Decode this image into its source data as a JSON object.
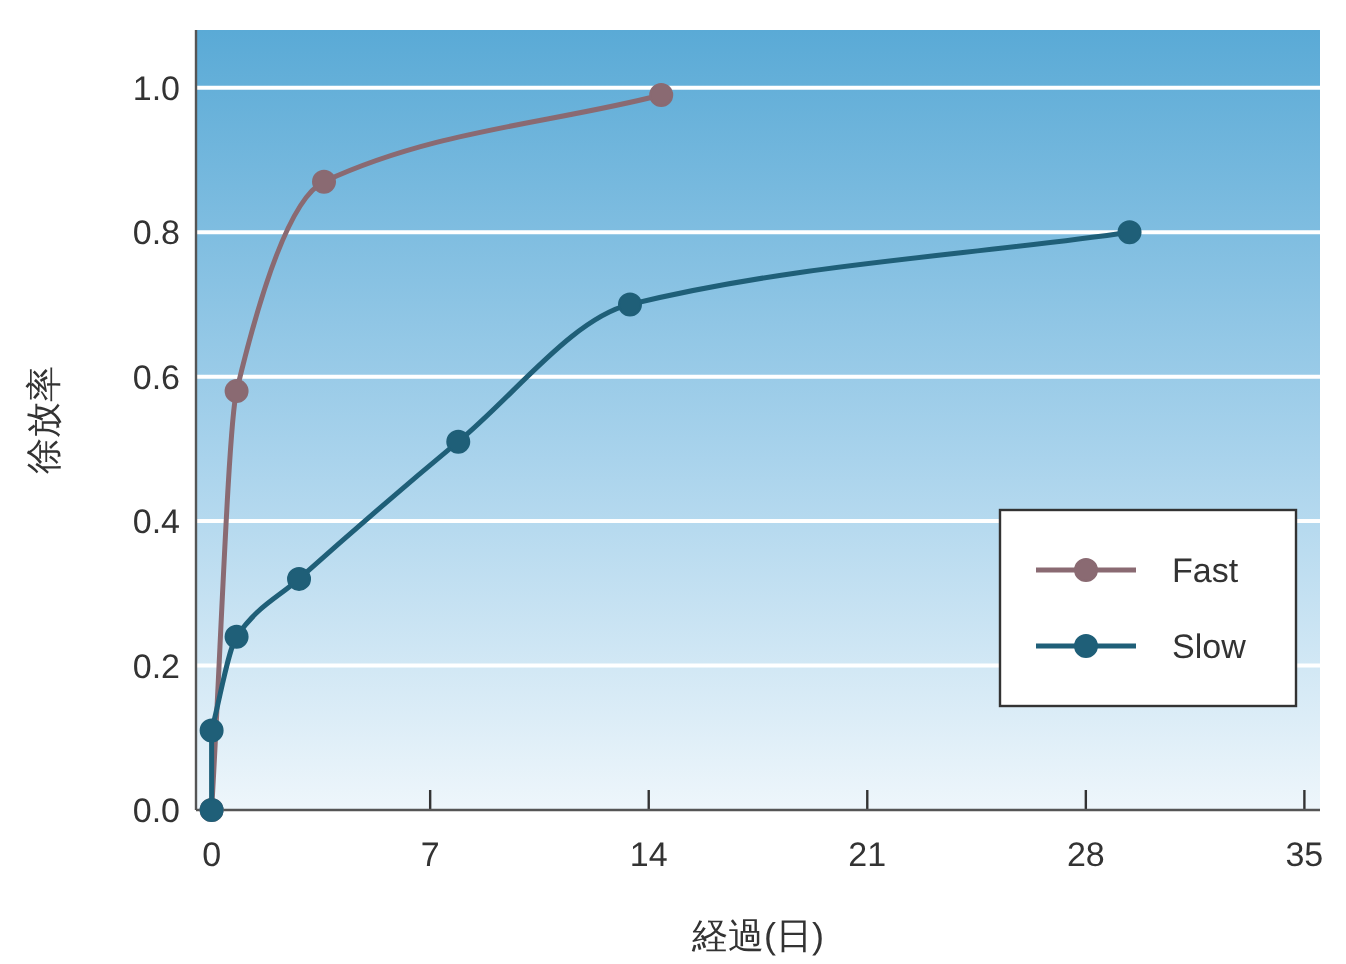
{
  "chart_data": {
    "type": "line",
    "xlabel": "経過(日)",
    "ylabel": "徐放率",
    "xlim": [
      -0.5,
      35.5
    ],
    "ylim": [
      0,
      1.08
    ],
    "xticks": [
      0,
      7,
      14,
      21,
      28,
      35
    ],
    "yticks": [
      {
        "value": 0,
        "label": "0.0"
      },
      0.2,
      0.4,
      0.6,
      0.8,
      {
        "value": 1,
        "label": "1.0"
      }
    ],
    "grid": "y",
    "legend": "bottom right",
    "marker": "circle",
    "line_style": "solid",
    "series": [
      {
        "name": "Fast",
        "color": "#8a6a72",
        "x": [
          0,
          0.8,
          3.6,
          14.4
        ],
        "values": [
          0,
          0.58,
          0.87,
          0.99
        ]
      },
      {
        "name": "Slow",
        "color": "#1f5f78",
        "x": [
          0,
          0,
          0.8,
          2.8,
          7.9,
          13.4,
          29.4
        ],
        "values": [
          0,
          0.11,
          0.24,
          0.32,
          0.51,
          0.7,
          0.8
        ]
      }
    ]
  }
}
